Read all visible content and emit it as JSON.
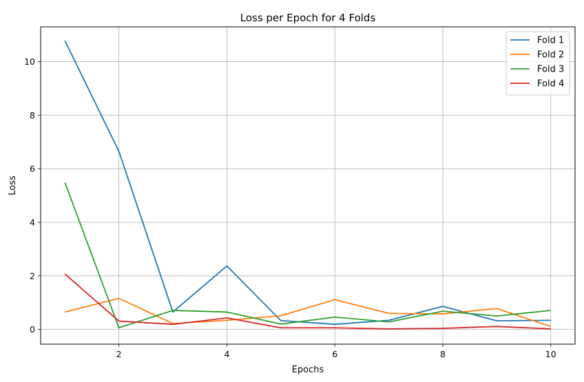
{
  "chart_data": {
    "type": "line",
    "title": "Loss per Epoch for 4 Folds",
    "xlabel": "Epochs",
    "ylabel": "Loss",
    "x": [
      1,
      2,
      3,
      4,
      5,
      6,
      7,
      8,
      9,
      10
    ],
    "xlim": [
      0.55,
      10.45
    ],
    "ylim": [
      -0.55,
      11.3
    ],
    "xticks": [
      2,
      4,
      6,
      8,
      10
    ],
    "yticks": [
      0,
      2,
      4,
      6,
      8,
      10
    ],
    "grid": true,
    "legend_position": "top-right",
    "series": [
      {
        "name": "Fold 1",
        "color": "#1f77b4",
        "values": [
          10.78,
          6.65,
          0.65,
          2.37,
          0.33,
          0.19,
          0.34,
          0.86,
          0.32,
          0.34
        ]
      },
      {
        "name": "Fold 2",
        "color": "#ff7f0e",
        "values": [
          0.65,
          1.16,
          0.22,
          0.34,
          0.51,
          1.11,
          0.6,
          0.58,
          0.78,
          0.11
        ]
      },
      {
        "name": "Fold 3",
        "color": "#2ca02c",
        "values": [
          5.49,
          0.06,
          0.71,
          0.65,
          0.2,
          0.46,
          0.28,
          0.68,
          0.5,
          0.71
        ]
      },
      {
        "name": "Fold 4",
        "color": "#d62728",
        "values": [
          2.07,
          0.31,
          0.19,
          0.43,
          0.06,
          0.06,
          0.02,
          0.04,
          0.11,
          0.02
        ]
      }
    ]
  }
}
